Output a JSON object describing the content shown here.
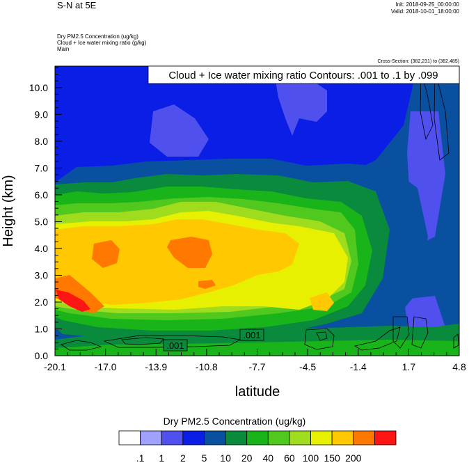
{
  "header": {
    "title": "S-N at 5E",
    "init": "Init: 2018-09-25_00:00:00",
    "valid": "Valid: 2018-10-01_18:00:00",
    "field_line1": "Dry PM2.5 Concentration   (ug/kg)",
    "field_line2": "Cloud + Ice water mixing ratio   (g/kg)",
    "field_line3": "Main",
    "cross_section": "Cross-Section: (382,231) to (382,485)"
  },
  "chart_data": {
    "type": "heatmap",
    "title": "Cloud + Ice water mixing ratio Contours: .001 to .1 by .099",
    "xlabel": "latitude",
    "ylabel": "Height (km)",
    "xlim": [
      -20.1,
      4.8
    ],
    "ylim": [
      0.0,
      10.8
    ],
    "x_ticks": [
      "-20.1",
      "-17.0",
      "-13.9",
      "-10.8",
      "-7.7",
      "-4.5",
      "-1.4",
      "1.7",
      "4.8"
    ],
    "y_ticks": [
      "0.0",
      "1.0",
      "2.0",
      "3.0",
      "4.0",
      "5.0",
      "6.0",
      "7.0",
      "8.0",
      "9.0",
      "10.0"
    ],
    "contour_labels": [
      ".001",
      ".001"
    ],
    "colorbar": {
      "title": "Dry PM2.5 Concentration  (ug/kg)",
      "labels": [
        ".1",
        "1",
        "2",
        "5",
        "10",
        "20",
        "40",
        "60",
        "100",
        "150",
        "200"
      ],
      "colors": [
        "#ffffff",
        "#a0a0ff",
        "#5050ee",
        "#0a1ee6",
        "#0a50a0",
        "#0a8a3c",
        "#19b419",
        "#50c81e",
        "#a0dc1e",
        "#e6f000",
        "#ffc800",
        "#ff7800",
        "#ff1414"
      ]
    }
  }
}
